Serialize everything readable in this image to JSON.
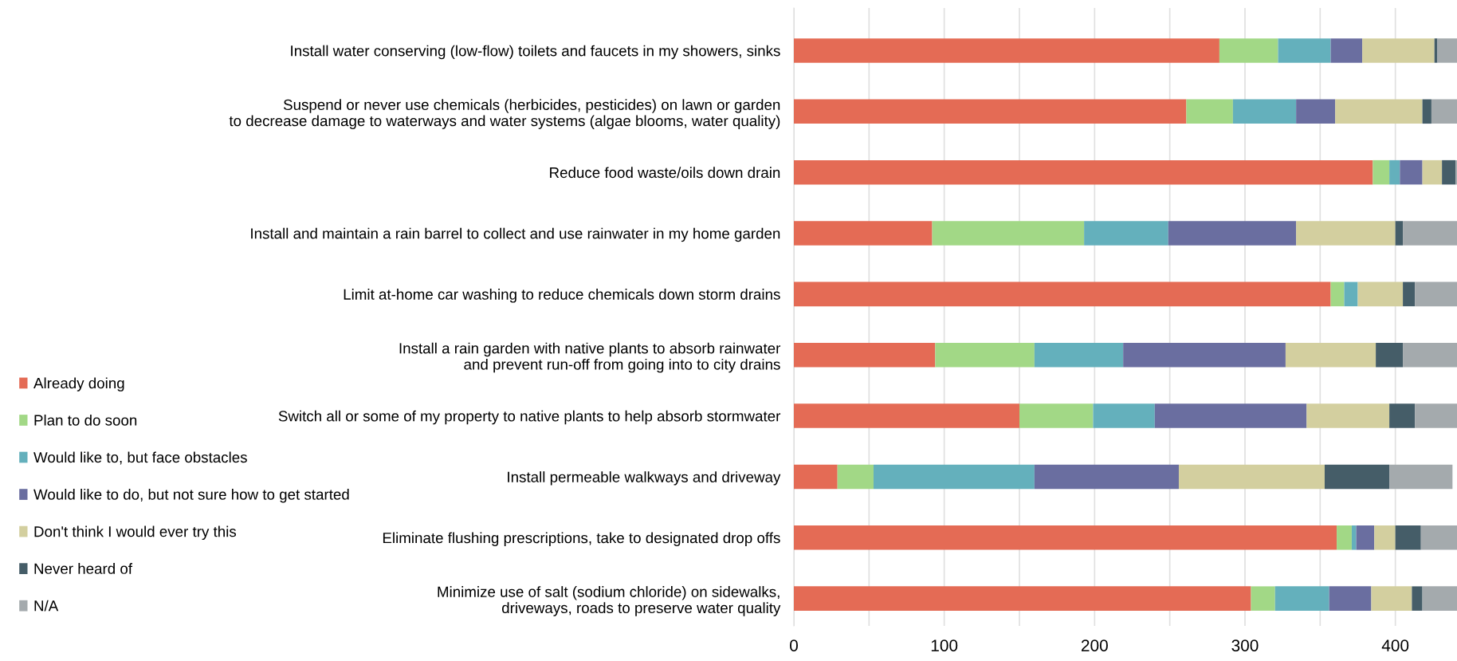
{
  "chart_data": {
    "type": "bar",
    "orientation": "horizontal",
    "stacked": true,
    "categories": [
      "Install water conserving (low-flow) toilets and faucets in my showers, sinks",
      "Suspend or never use chemicals (herbicides, pesticides) on lawn or garden\nto decrease damage to waterways and water systems (algae blooms, water quality)",
      "Reduce food waste/oils down drain",
      "Install and maintain a rain barrel to collect and use rainwater in my home garden",
      "Limit at-home car washing to reduce chemicals down storm drains",
      "Install a rain garden with native plants to absorb rainwater\nand prevent run-off from going into to city drains",
      "Switch all or some of my property to native plants to help absorb stormwater",
      "Install permeable walkways and driveway",
      "Eliminate flushing prescriptions, take to designated drop offs",
      "Minimize use of salt (sodium chloride) on sidewalks,\ndriveways, roads to preserve water quality"
    ],
    "series": [
      {
        "name": "Already doing",
        "color": "#e46b55",
        "values": [
          283,
          261,
          385,
          92,
          357,
          94,
          150,
          29,
          361,
          304
        ]
      },
      {
        "name": "Plan to do soon",
        "color": "#a2d886",
        "values": [
          39,
          31,
          11,
          101,
          9,
          66,
          49,
          24,
          10,
          16
        ]
      },
      {
        "name": "Would like to, but face obstacles",
        "color": "#64b0bc",
        "values": [
          35,
          42,
          7,
          56,
          9,
          59,
          41,
          107,
          3,
          36
        ]
      },
      {
        "name": "Would like to do, but not sure how to get started",
        "color": "#6a6ea0",
        "values": [
          21,
          26,
          15,
          85,
          0,
          108,
          101,
          96,
          12,
          28
        ]
      },
      {
        "name": "Don't think I would ever try this",
        "color": "#d3cf9f",
        "values": [
          48,
          58,
          13,
          66,
          30,
          60,
          55,
          97,
          14,
          27
        ]
      },
      {
        "name": "Never heard of",
        "color": "#455d68",
        "values": [
          2,
          6,
          9,
          5,
          8,
          18,
          17,
          43,
          17,
          7
        ]
      },
      {
        "name": "N/A",
        "color": "#a4aaad",
        "values": [
          13,
          17,
          1,
          36,
          28,
          36,
          28,
          42,
          24,
          23
        ]
      }
    ],
    "xlim": [
      0,
      441
    ],
    "xticks": [
      0,
      {
        "value": 50,
        "label": null
      },
      100,
      {
        "value": 150,
        "label": null
      },
      200,
      {
        "value": 250,
        "label": null
      },
      300,
      {
        "value": 350,
        "label": null
      },
      400
    ],
    "grid": "x",
    "legend": "left"
  }
}
